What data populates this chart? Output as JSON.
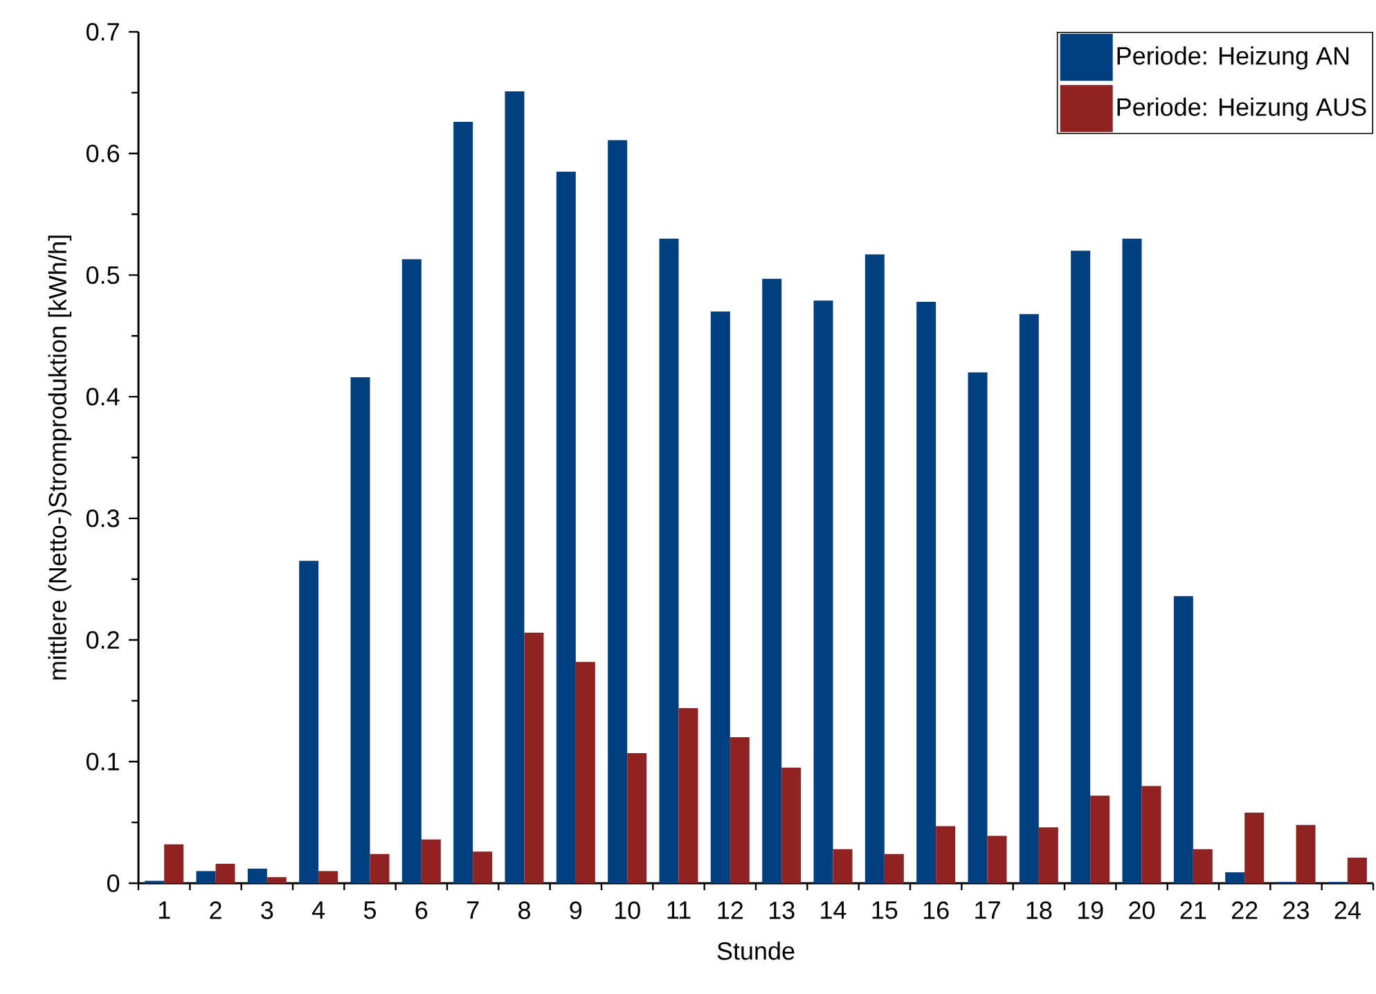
{
  "chart_data": {
    "type": "bar",
    "xlabel": "Stunde",
    "ylabel": "mittlere (Netto-)Stromproduktion [kWh/h]",
    "categories": [
      "1",
      "2",
      "3",
      "4",
      "5",
      "6",
      "7",
      "8",
      "9",
      "10",
      "11",
      "12",
      "13",
      "14",
      "15",
      "16",
      "17",
      "18",
      "19",
      "20",
      "21",
      "22",
      "23",
      "24"
    ],
    "series": [
      {
        "name": "Periode: Heizung AN",
        "color": "#003f80",
        "values": [
          0.002,
          0.01,
          0.012,
          0.265,
          0.416,
          0.513,
          0.626,
          0.651,
          0.585,
          0.611,
          0.53,
          0.47,
          0.497,
          0.479,
          0.517,
          0.478,
          0.42,
          0.468,
          0.52,
          0.53,
          0.236,
          0.009,
          0.001,
          0.001
        ]
      },
      {
        "name": "Periode: Heizung AUS",
        "color": "#912222",
        "values": [
          0.032,
          0.016,
          0.005,
          0.01,
          0.024,
          0.036,
          0.026,
          0.206,
          0.182,
          0.107,
          0.144,
          0.12,
          0.095,
          0.028,
          0.024,
          0.047,
          0.039,
          0.046,
          0.072,
          0.08,
          0.028,
          0.058,
          0.048,
          0.021
        ]
      }
    ],
    "ylim": [
      0,
      0.7
    ],
    "yticks": [
      0,
      0.1,
      0.2,
      0.3,
      0.4,
      0.5,
      0.6,
      0.7
    ],
    "legend": "top right"
  }
}
